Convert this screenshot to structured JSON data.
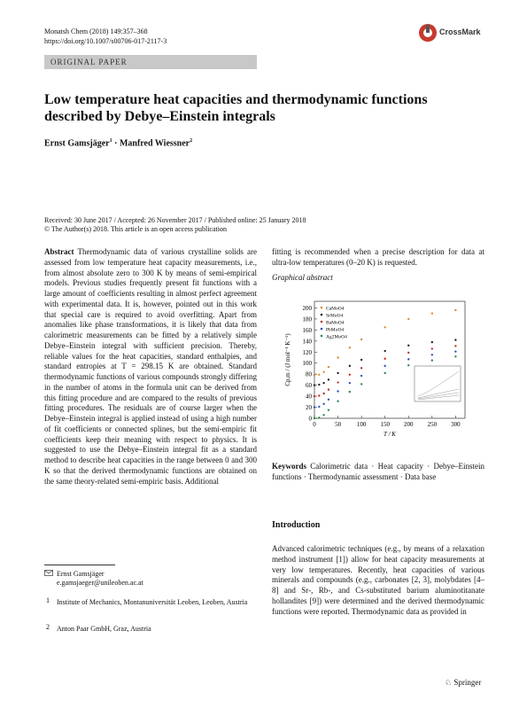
{
  "header": {
    "journal": "Monatsh Chem (2018) 149:357–368",
    "doi": "https://doi.org/10.1007/s00706-017-2117-3",
    "crossmark": "CrossMark",
    "section": "ORIGINAL PAPER"
  },
  "title": [
    "Low temperature heat capacities and thermodynamic functions",
    "described by Debye–Einstein integrals"
  ],
  "authors": [
    {
      "name": "Ernst Gamsjäger",
      "aff": "1"
    },
    {
      "name": "Manfred Wiessner",
      "aff": "2"
    }
  ],
  "author_sep": "·",
  "dates": "Received: 30 June 2017 / Accepted: 26 November 2017 / Published online: 25 January 2018",
  "license": "© The Author(s) 2018. This article is an open access publication",
  "abstract": {
    "label": "Abstract",
    "text": "Thermodynamic data of various crystalline solids are assessed from low temperature heat capacity measurements, i.e., from almost absolute zero to 300 K by means of semi-empirical models. Previous studies frequently present fit functions with a large amount of coefficients resulting in almost perfect agreement with experimental data. It is, however, pointed out in this work that special care is required to avoid overfitting. Apart from anomalies like phase transformations, it is likely that data from calorimetric measurements can be fitted by a relatively simple Debye–Einstein integral with sufficient precision. Thereby, reliable values for the heat capacities, standard enthalpies, and standard entropies at T = 298.15 K are obtained. Standard thermodynamic functions of various compounds strongly differing in the number of atoms in the formula unit can be derived from this fitting procedure and are compared to the results of previous fitting procedures. The residuals are of course larger when the Debye–Einstein integral is applied instead of using a high number of fit coefficients or connected splines, but the semi-empiric fit coefficients keep their meaning with respect to physics. It is suggested to use the Debye–Einstein integral fit as a standard method to describe heat capacities in the range between 0 and 300 K so that the derived thermodynamic functions are obtained on the same theory-related semi-empiric basis. Additional",
    "continuation": "fitting is recommended when a precise description for data at ultra-low temperatures (0–20 K) is requested."
  },
  "graphical_abstract": {
    "label": "Graphical abstract",
    "ylabel": "Cp,m / (J mol⁻¹ K⁻¹)",
    "xlabel": "T / K",
    "xlim": [
      0,
      320
    ],
    "ylim": [
      0,
      212
    ],
    "xticks": [
      0,
      50,
      100,
      150,
      200,
      250,
      300
    ],
    "yticks": [
      0,
      20,
      40,
      60,
      80,
      100,
      120,
      140,
      160,
      180,
      200
    ],
    "x": [
      0,
      10,
      20,
      30,
      50,
      75,
      100,
      150,
      200,
      250,
      300
    ],
    "series": [
      {
        "name": "CaMoO4",
        "color": "#e0892a",
        "values": [
          78,
          79,
          84,
          93,
          110,
          128,
          143,
          165,
          180,
          190,
          196
        ]
      },
      {
        "name": "SrMoO4",
        "color": "#222222",
        "values": [
          60,
          61,
          64,
          70,
          82,
          95,
          106,
          122,
          132,
          138,
          142
        ]
      },
      {
        "name": "BaMoO4",
        "color": "#c0302a",
        "values": [
          40,
          41,
          45,
          52,
          65,
          79,
          91,
          108,
          119,
          126,
          131
        ]
      },
      {
        "name": "PbMoO4",
        "color": "#3050c0",
        "values": [
          20,
          21,
          26,
          34,
          49,
          64,
          77,
          95,
          107,
          115,
          121
        ]
      },
      {
        "name": "Ag2MoO4",
        "color": "#2a8a4a",
        "values": [
          0,
          1,
          6,
          15,
          31,
          48,
          62,
          82,
          96,
          105,
          112
        ]
      }
    ]
  },
  "keywords": {
    "label": "Keywords",
    "text": "Calorimetric data · Heat capacity · Debye–Einstein functions · Thermodynamic assessment · Data base"
  },
  "introduction": {
    "heading": "Introduction",
    "text": "Advanced calorimetric techniques (e.g., by means of a relaxation method instrument [1]) allow for heat capacity measurements at very low temperatures. Recently, heat capacities of various minerals and compounds (e.g., carbonates [2, 3], molybdates [4–8] and Sr-, Rb-, and Cs-substituted barium aluminotitanate hollandites [9]) were determined and the derived thermodynamic functions were reported. Thermodynamic data as provided in"
  },
  "footnotes": {
    "contact_name": "Ernst Gamsjäger",
    "email": "e.gamsjaeger@unileoben.ac.at",
    "affiliations": [
      {
        "num": "1",
        "text": "Institute of Mechanics, Montanuniversität Leoben, Leoben, Austria"
      },
      {
        "num": "2",
        "text": "Anton Paar GmbH, Graz, Austria"
      }
    ]
  },
  "footer": {
    "publisher": "Springer"
  }
}
